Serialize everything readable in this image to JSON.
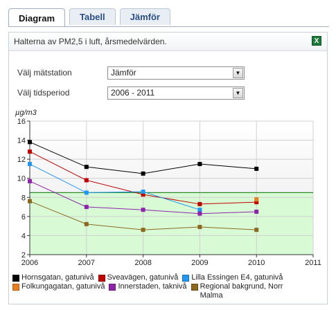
{
  "tabs": [
    {
      "label": "Diagram",
      "active": true
    },
    {
      "label": "Tabell",
      "active": false
    },
    {
      "label": "Jämför",
      "active": false
    }
  ],
  "panel": {
    "title": "Halterna av PM2,5 i luft, årsmedelvärden.",
    "export_icon": "excel-icon"
  },
  "form": {
    "station_label": "Välj mätstation",
    "station_value": "Jämför",
    "period_label": "Välj tidsperiod",
    "period_value": "2006 - 2011"
  },
  "chart_data": {
    "type": "line",
    "ylabel": "µg/m3",
    "xlabel": "",
    "x": [
      2006,
      2007,
      2008,
      2009,
      2010,
      2011
    ],
    "xlim": [
      2006,
      2011
    ],
    "ylim": [
      2,
      16
    ],
    "yticks": [
      2,
      4,
      6,
      8,
      10,
      12,
      14,
      16
    ],
    "grid": true,
    "threshold": {
      "value": 8.5,
      "color": "#2b8a2b",
      "below_fill": "#d8fbd6"
    },
    "series": [
      {
        "name": "Hornsgatan, gatunivå",
        "color": "#000000",
        "values": [
          13.8,
          11.2,
          10.5,
          11.5,
          11.0,
          null
        ]
      },
      {
        "name": "Sveavägen, gatunivå",
        "color": "#c00000",
        "values": [
          12.8,
          9.8,
          8.3,
          7.3,
          7.5,
          null
        ]
      },
      {
        "name": "Lilla Essingen E4, gatunivå",
        "color": "#2196f3",
        "values": [
          11.5,
          8.5,
          8.6,
          6.7,
          null,
          null
        ]
      },
      {
        "name": "Folkungagatan, gatunivå",
        "color": "#e67e22",
        "values": [
          null,
          null,
          null,
          null,
          7.8,
          null
        ]
      },
      {
        "name": "Innerstaden, taknivå",
        "color": "#8e24aa",
        "values": [
          9.7,
          7.0,
          6.7,
          6.3,
          6.5,
          null
        ]
      },
      {
        "name": "Regional bakgrund, Norr Malma",
        "color": "#8b6a1f",
        "values": [
          7.6,
          5.2,
          4.6,
          4.9,
          4.6,
          null
        ]
      }
    ]
  }
}
